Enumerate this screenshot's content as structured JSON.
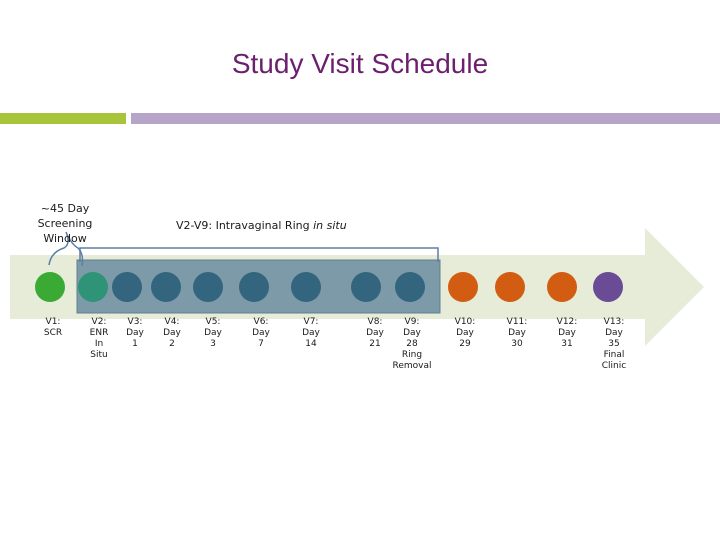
{
  "title": "Study Visit Schedule",
  "screening_window": "~45 Day\nScreening\nWindow",
  "insitu_range": "V2-V9:",
  "insitu_text": "Intravaginal Ring",
  "insitu_em": "in situ",
  "colors": {
    "title": "#6b1f6e",
    "accent_green": "#a8c43a",
    "accent_purple": "#b6a5c9",
    "arrow": "#e6ecd7",
    "in_situ_box": "#7d9aa9",
    "visit_green": "#3aaa35",
    "visit_teal": "#2f9477",
    "visit_blue": "#33657f",
    "visit_orange": "#d25c12",
    "visit_purple": "#6a4b96"
  },
  "visits": [
    {
      "label": "V1:\nSCR",
      "color": "visit_green"
    },
    {
      "label": "V2:\nENR\nIn\nSitu",
      "color": "visit_teal"
    },
    {
      "label": "V3:\nDay\n1",
      "color": "visit_blue"
    },
    {
      "label": "V4:\nDay\n2",
      "color": "visit_blue"
    },
    {
      "label": "V5:\nDay\n3",
      "color": "visit_blue"
    },
    {
      "label": "V6:\nDay\n7",
      "color": "visit_blue"
    },
    {
      "label": "V7:\nDay\n14",
      "color": "visit_blue"
    },
    {
      "label": "V8:\nDay\n21",
      "color": "visit_blue"
    },
    {
      "label": "V9:\nDay\n28\nRing\nRemoval",
      "color": "visit_blue"
    },
    {
      "label": "V10:\nDay\n29",
      "color": "visit_orange"
    },
    {
      "label": "V11:\nDay\n30",
      "color": "visit_orange"
    },
    {
      "label": "V12:\nDay\n31",
      "color": "visit_orange"
    },
    {
      "label": "V13:\nDay\n35\nFinal\nClinic",
      "color": "visit_purple"
    }
  ]
}
